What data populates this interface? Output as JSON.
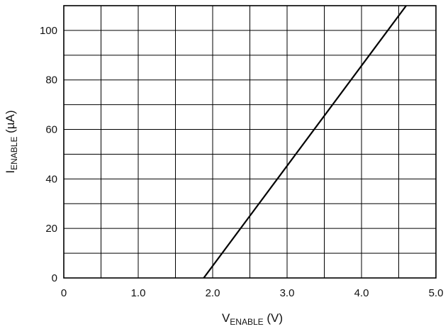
{
  "chart_data": {
    "type": "line",
    "title": "",
    "xlabel": {
      "main": "V",
      "subscript": "ENABLE",
      "unit": " (V)"
    },
    "ylabel": {
      "main": "I",
      "subscript": "ENABLE",
      "unit": " (µA)"
    },
    "xlim": [
      0,
      5.0
    ],
    "ylim": [
      0,
      110
    ],
    "x_ticks": [
      0,
      1.0,
      2.0,
      3.0,
      4.0,
      5.0
    ],
    "x_tick_labels": [
      "0",
      "1.0",
      "2.0",
      "3.0",
      "4.0",
      "5.0"
    ],
    "y_ticks": [
      0,
      20,
      40,
      60,
      80,
      100
    ],
    "y_tick_labels": [
      "0",
      "20",
      "40",
      "60",
      "80",
      "100"
    ],
    "x_grid": [
      0,
      0.5,
      1.0,
      1.5,
      2.0,
      2.5,
      3.0,
      3.5,
      4.0,
      4.5,
      5.0
    ],
    "y_grid": [
      0,
      10,
      20,
      30,
      40,
      50,
      60,
      70,
      80,
      90,
      100
    ],
    "grid": true,
    "series": [
      {
        "x": [
          1.88,
          4.6
        ],
        "y": [
          0,
          110
        ],
        "color": "#000000"
      }
    ]
  }
}
